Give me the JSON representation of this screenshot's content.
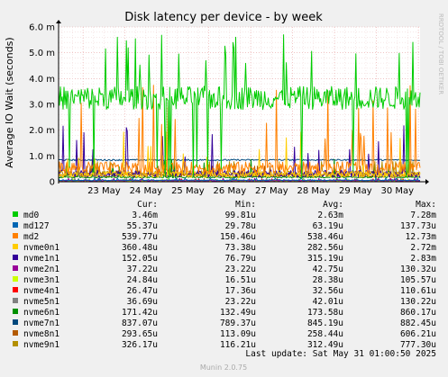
{
  "chart_data": {
    "type": "line",
    "title": "Disk latency per device - by week",
    "ylabel": "Average IO Wait (seconds)",
    "watermark": "RRDTOOL / TOBI OETIKER",
    "y_ticks": [
      "0",
      "1.0 m",
      "2.0 m",
      "3.0 m",
      "4.0 m",
      "5.0 m",
      "6.0 m"
    ],
    "ylim": [
      0,
      0.006
    ],
    "x_ticks": [
      "23 May",
      "24 May",
      "25 May",
      "26 May",
      "27 May",
      "28 May",
      "29 May",
      "30 May"
    ],
    "x_range": [
      "2025-05-22T10:00",
      "2025-05-31T01:00"
    ],
    "legend_headers": {
      "cur": "Cur:",
      "min": "Min:",
      "avg": "Avg:",
      "max": "Max:"
    },
    "series": [
      {
        "name": "md0",
        "color": "#00cc00",
        "cur": "3.46m",
        "min": "99.81u",
        "avg": "2.63m",
        "max": "7.28m"
      },
      {
        "name": "md127",
        "color": "#0066b3",
        "cur": "55.37u",
        "min": "29.78u",
        "avg": "63.19u",
        "max": "137.73u"
      },
      {
        "name": "md2",
        "color": "#ff8000",
        "cur": "539.77u",
        "min": "150.46u",
        "avg": "538.46u",
        "max": "12.73m"
      },
      {
        "name": "nvme0n1",
        "color": "#ffcc00",
        "cur": "360.48u",
        "min": "73.38u",
        "avg": "282.56u",
        "max": "2.72m"
      },
      {
        "name": "nvme1n1",
        "color": "#330099",
        "cur": "152.05u",
        "min": "76.79u",
        "avg": "315.19u",
        "max": "2.83m"
      },
      {
        "name": "nvme2n1",
        "color": "#990099",
        "cur": "37.22u",
        "min": "23.22u",
        "avg": "42.75u",
        "max": "130.32u"
      },
      {
        "name": "nvme3n1",
        "color": "#ccff00",
        "cur": "24.84u",
        "min": "16.51u",
        "avg": "28.38u",
        "max": "105.57u"
      },
      {
        "name": "nvme4n1",
        "color": "#ff0000",
        "cur": "26.47u",
        "min": "17.36u",
        "avg": "32.56u",
        "max": "110.61u"
      },
      {
        "name": "nvme5n1",
        "color": "#808080",
        "cur": "36.69u",
        "min": "23.22u",
        "avg": "42.01u",
        "max": "130.22u"
      },
      {
        "name": "nvme6n1",
        "color": "#008f00",
        "cur": "171.42u",
        "min": "132.49u",
        "avg": "173.58u",
        "max": "860.17u"
      },
      {
        "name": "nvme7n1",
        "color": "#00487d",
        "cur": "837.07u",
        "min": "789.37u",
        "avg": "845.19u",
        "max": "882.45u"
      },
      {
        "name": "nvme8n1",
        "color": "#b35a00",
        "cur": "293.65u",
        "min": "113.09u",
        "avg": "258.44u",
        "max": "606.21u"
      },
      {
        "name": "nvme9n1",
        "color": "#b38f00",
        "cur": "326.17u",
        "min": "116.21u",
        "avg": "312.49u",
        "max": "777.30u"
      }
    ],
    "last_update": "Last update: Sat May 31 01:00:50 2025",
    "footer": "Munin 2.0.75"
  }
}
